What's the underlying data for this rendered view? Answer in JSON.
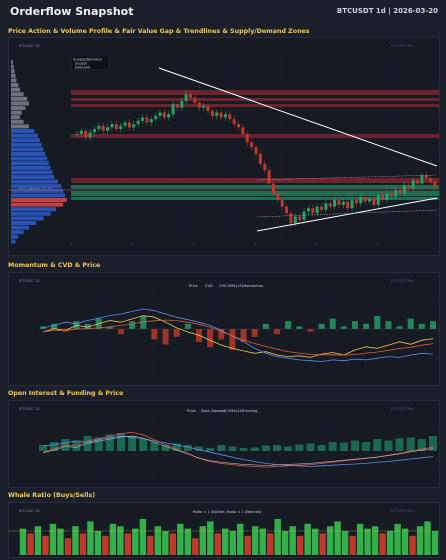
{
  "header": {
    "title": "Orderflow Snapshot",
    "meta": "BTCUSDT 1d | 2026-03-20"
  },
  "sections": {
    "price": "Price Action & Volume Profile & Fair Value Gap & Trendlines & Supply/Demand Zones",
    "momentum": "Momentum & CVD & Price",
    "oi": "Open Interest & Funding & Price",
    "whale": "Whale Ratio (Buys/Sells)"
  },
  "panels": {
    "price": {
      "symbol": "BTCUSDT 1D",
      "watermark": "BTCUSDT.Rev.",
      "legend": [
        "Supply/Demand",
        "Supply",
        "Demand"
      ],
      "poc_label": "POC: 68093.01 29"
    },
    "momentum": {
      "symbol": "BTCUSDT 1D",
      "watermark": "BTCUSDT.Rev.",
      "legend": [
        "Price",
        "CVD",
        "CVD SMA(14)",
        "Momentum"
      ]
    },
    "oi": {
      "symbol": "BTCUSDT 1D",
      "watermark": "BTCUSDT.Rev.",
      "legend": [
        "Price",
        "Spot (Sweep)",
        "OI SMA(14)",
        "Funding"
      ]
    },
    "whale": {
      "symbol": "BTCUSDT 1D",
      "watermark": "BTCUSDT.Rev.",
      "legend": [
        "Ratio > 1 (Bullish)",
        "Ratio < 1 (Bearish)"
      ]
    }
  },
  "colors": {
    "bull": "#26a269",
    "bear": "#c0392b",
    "supply": "#8c2632",
    "demand": "#1e8a66",
    "price_line": "#e6e8ee",
    "cvd": "#f2c94c",
    "sma": "#e05a3a",
    "momentum": "#5b8def",
    "accent": "#f3c84b"
  },
  "chart_data": [
    {
      "type": "candlestick",
      "title": "Price Action & Volume Profile & Fair Value Gap & Trendlines & Supply/Demand Zones",
      "close": [
        0.6,
        0.62,
        0.58,
        0.61,
        0.63,
        0.65,
        0.62,
        0.64,
        0.66,
        0.63,
        0.65,
        0.67,
        0.64,
        0.66,
        0.68,
        0.7,
        0.67,
        0.69,
        0.71,
        0.73,
        0.7,
        0.72,
        0.78,
        0.76,
        0.8,
        0.84,
        0.82,
        0.79,
        0.76,
        0.77,
        0.74,
        0.71,
        0.73,
        0.7,
        0.72,
        0.69,
        0.66,
        0.64,
        0.6,
        0.55,
        0.52,
        0.48,
        0.42,
        0.38,
        0.3,
        0.24,
        0.2,
        0.16,
        0.12,
        0.06,
        0.1,
        0.08,
        0.13,
        0.15,
        0.12,
        0.16,
        0.14,
        0.18,
        0.16,
        0.2,
        0.17,
        0.19,
        0.15,
        0.2,
        0.18,
        0.22,
        0.19,
        0.21,
        0.17,
        0.23,
        0.2,
        0.24,
        0.22,
        0.26,
        0.24,
        0.29,
        0.27,
        0.32,
        0.3,
        0.35,
        0.33,
        0.31,
        0.28
      ]
    },
    {
      "type": "line+bar",
      "title": "Momentum & CVD & Price",
      "price": [
        0.55,
        0.58,
        0.62,
        0.6,
        0.64,
        0.67,
        0.7,
        0.72,
        0.75,
        0.78,
        0.76,
        0.72,
        0.68,
        0.65,
        0.62,
        0.58,
        0.52,
        0.45,
        0.38,
        0.3,
        0.24,
        0.2,
        0.18,
        0.16,
        0.15,
        0.14,
        0.16,
        0.15,
        0.17,
        0.16,
        0.18,
        0.2,
        0.19,
        0.22,
        0.24,
        0.23
      ],
      "cvd": [
        0.5,
        0.54,
        0.52,
        0.58,
        0.56,
        0.6,
        0.64,
        0.62,
        0.66,
        0.7,
        0.68,
        0.62,
        0.55,
        0.5,
        0.46,
        0.4,
        0.34,
        0.3,
        0.27,
        0.24,
        0.26,
        0.22,
        0.2,
        0.21,
        0.19,
        0.23,
        0.25,
        0.22,
        0.28,
        0.32,
        0.3,
        0.34,
        0.38,
        0.35,
        0.4,
        0.42
      ],
      "momentum": [
        0.1,
        0.2,
        -0.1,
        0.3,
        0.2,
        0.4,
        0.1,
        -0.2,
        0.3,
        0.5,
        -0.4,
        -0.6,
        -0.3,
        0.2,
        -0.5,
        -0.7,
        -0.4,
        -0.8,
        -0.5,
        -0.3,
        0.2,
        -0.2,
        0.3,
        0.1,
        -0.1,
        0.2,
        0.4,
        0.1,
        0.3,
        0.2,
        0.5,
        0.3,
        0.1,
        0.4,
        0.2,
        0.3
      ]
    },
    {
      "type": "line+bar",
      "title": "Open Interest & Funding & Price",
      "price": [
        0.5,
        0.52,
        0.55,
        0.58,
        0.56,
        0.6,
        0.63,
        0.66,
        0.64,
        0.62,
        0.58,
        0.55,
        0.52,
        0.48,
        0.44,
        0.4,
        0.36,
        0.32,
        0.28,
        0.25,
        0.22,
        0.2,
        0.19,
        0.18,
        0.17,
        0.18,
        0.19,
        0.2,
        0.21,
        0.22,
        0.24,
        0.25,
        0.27,
        0.29,
        0.31,
        0.33
      ],
      "oi": [
        0.4,
        0.45,
        0.52,
        0.5,
        0.58,
        0.62,
        0.66,
        0.7,
        0.72,
        0.68,
        0.6,
        0.52,
        0.45,
        0.38,
        0.3,
        0.25,
        0.22,
        0.2,
        0.18,
        0.17,
        0.16,
        0.17,
        0.18,
        0.19,
        0.2,
        0.22,
        0.24,
        0.26,
        0.28,
        0.3,
        0.32,
        0.35,
        0.38,
        0.42,
        0.45,
        0.48
      ],
      "funding": [
        0.2,
        0.3,
        0.4,
        0.35,
        0.5,
        0.45,
        0.55,
        0.6,
        0.5,
        0.4,
        0.3,
        0.2,
        0.25,
        0.2,
        0.15,
        0.1,
        0.2,
        0.15,
        0.1,
        0.12,
        0.18,
        0.2,
        0.15,
        0.22,
        0.25,
        0.2,
        0.3,
        0.28,
        0.35,
        0.3,
        0.4,
        0.35,
        0.42,
        0.45,
        0.4,
        0.5
      ]
    },
    {
      "type": "bar",
      "title": "Whale Ratio (Buys/Sells)",
      "values": [
        1.1,
        0.9,
        1.2,
        0.8,
        1.3,
        1.1,
        0.7,
        1.2,
        0.9,
        1.4,
        1.0,
        0.8,
        1.3,
        1.2,
        0.9,
        1.1,
        1.5,
        0.8,
        1.2,
        1.0,
        0.9,
        1.3,
        1.1,
        0.7,
        1.2,
        1.4,
        0.9,
        1.1,
        1.0,
        1.3,
        0.8,
        1.2,
        1.1,
        0.9,
        1.5,
        1.0,
        1.2,
        0.8,
        1.3,
        1.1,
        0.9,
        1.2,
        1.4,
        1.0,
        0.8,
        1.3,
        1.1,
        1.2,
        0.9,
        1.0,
        1.3,
        1.1,
        0.8,
        1.2,
        1.4,
        1.0
      ]
    }
  ]
}
